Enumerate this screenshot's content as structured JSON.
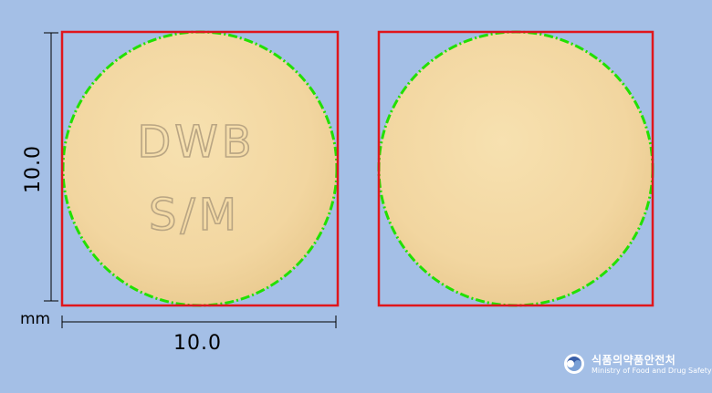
{
  "measurements": {
    "width_label": "10.0",
    "height_label": "10.0",
    "unit": "mm"
  },
  "pill_front": {
    "imprint_line1": "DWB",
    "imprint_line2": "S/M"
  },
  "colors": {
    "background": "#a4bfe6",
    "pill": "#f4d9a3",
    "bounding_box": "#e0161b",
    "outline": "#22e000"
  },
  "logo": {
    "korean_text": "식품의약품안전처",
    "english_text": "Ministry of Food and Drug Safety"
  }
}
